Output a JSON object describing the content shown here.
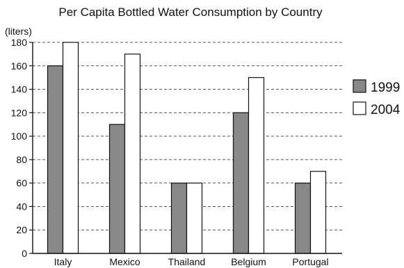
{
  "chart_data": {
    "type": "bar",
    "title": "Per Capita Bottled Water Consumption by Country",
    "unit_label": "(liters)",
    "categories": [
      "Italy",
      "Mexico",
      "Thailand",
      "Belgium",
      "Portugal"
    ],
    "series": [
      {
        "name": "1999",
        "values": [
          160,
          110,
          60,
          120,
          60
        ],
        "color": "#888888"
      },
      {
        "name": "2004",
        "values": [
          180,
          170,
          60,
          150,
          70
        ],
        "color": "#ffffff"
      }
    ],
    "ylim": [
      0,
      180
    ],
    "yticks": [
      0,
      20,
      40,
      60,
      80,
      100,
      120,
      140,
      160,
      180
    ],
    "grid": true,
    "legend_position": "right"
  }
}
